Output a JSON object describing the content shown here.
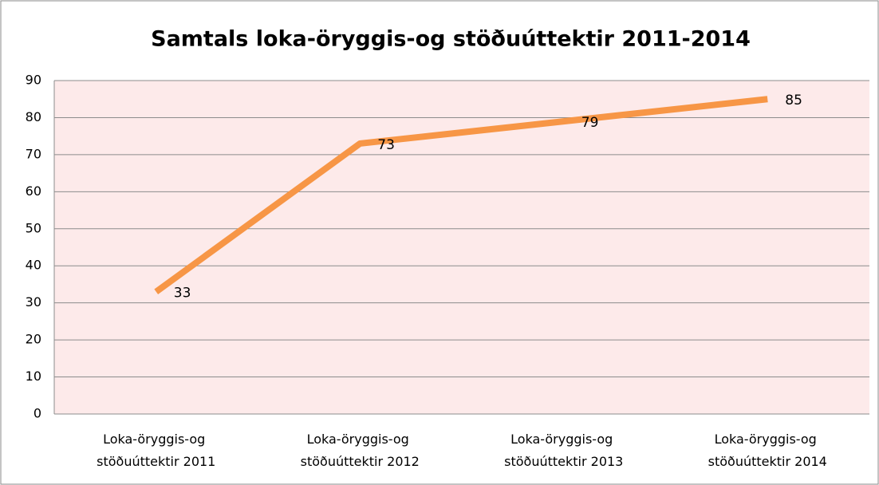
{
  "chart_data": {
    "type": "line",
    "title": "Samtals loka-öryggis-og stöðuúttektir 2011-2014",
    "categories": [
      "Loka-öryggis-og stöðuúttektir 2011",
      "Loka-öryggis-og stöðuúttektir 2012",
      "Loka-öryggis-og stöðuúttektir 2013",
      "Loka-öryggis-og stöðuúttektir 2014"
    ],
    "series": [
      {
        "name": "Samtals",
        "color": "#f79646",
        "values": [
          33,
          73,
          79,
          85
        ]
      }
    ],
    "ylim": [
      0,
      90
    ],
    "yticks": [
      0,
      10,
      20,
      30,
      40,
      50,
      60,
      70,
      80,
      90
    ],
    "grid": true,
    "plot_background": "#fdeaea"
  }
}
